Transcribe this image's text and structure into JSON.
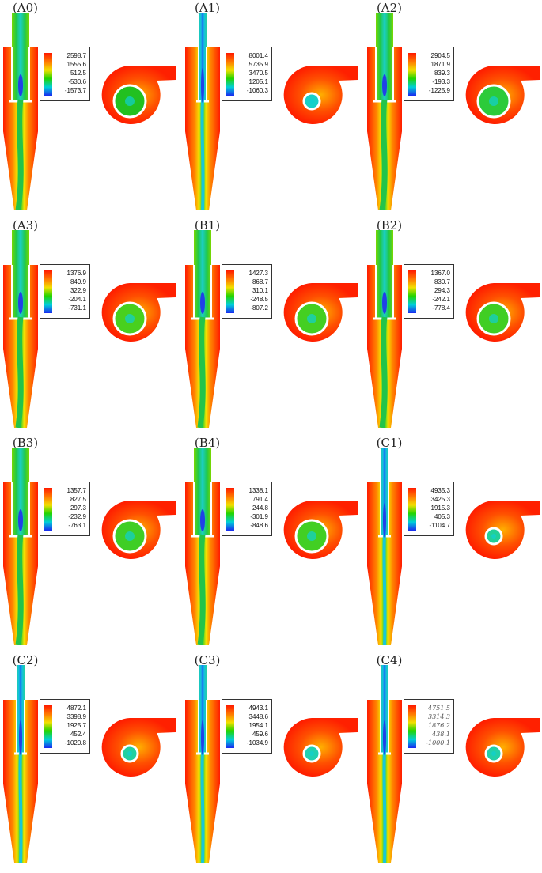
{
  "panels": [
    {
      "id": "a0",
      "label": "(A0)",
      "scale": [
        "2598.7",
        "1555.6",
        "512.5",
        "-530.6",
        "-1573.7"
      ],
      "core": "wide",
      "plan": "big",
      "inner": "#22c020"
    },
    {
      "id": "a1",
      "label": "(A1)",
      "scale": [
        "8001.4",
        "5735.9",
        "3470.5",
        "1205.1",
        "-1060.3"
      ],
      "core": "narrow",
      "plan": "small",
      "inner": "#19d0c8"
    },
    {
      "id": "a2",
      "label": "(A2)",
      "scale": [
        "2904.5",
        "1871.9",
        "839.3",
        "-193.3",
        "-1225.9"
      ],
      "core": "wide",
      "plan": "big",
      "inner": "#2ccb3a"
    },
    {
      "id": "a3",
      "label": "(A3)",
      "scale": [
        "1376.9",
        "849.9",
        "322.9",
        "-204.1",
        "-731.1"
      ],
      "core": "wide",
      "plan": "big",
      "inner": "#48d01e"
    },
    {
      "id": "b1",
      "label": "(B1)",
      "scale": [
        "1427.3",
        "868.7",
        "310.1",
        "-248.5",
        "-807.2"
      ],
      "core": "wide",
      "plan": "big",
      "inner": "#44cf22"
    },
    {
      "id": "b2",
      "label": "(B2)",
      "scale": [
        "1367.0",
        "830.7",
        "294.3",
        "-242.1",
        "-778.4"
      ],
      "core": "wide",
      "plan": "big",
      "inner": "#40ce24"
    },
    {
      "id": "b3",
      "label": "(B3)",
      "scale": [
        "1357.7",
        "827.5",
        "297.3",
        "-232.9",
        "-763.1"
      ],
      "core": "wide",
      "plan": "big",
      "inner": "#3fce25"
    },
    {
      "id": "b4",
      "label": "(B4)",
      "scale": [
        "1338.1",
        "791.4",
        "244.8",
        "-301.9",
        "-848.6"
      ],
      "core": "wide",
      "plan": "big",
      "inner": "#42cf23"
    },
    {
      "id": "c1",
      "label": "(C1)",
      "scale": [
        "4935.3",
        "3425.3",
        "1915.3",
        "405.3",
        "-1104.7"
      ],
      "core": "narrow",
      "plan": "small",
      "inner": "#22d098"
    },
    {
      "id": "c2",
      "label": "(C2)",
      "scale": [
        "4872.1",
        "3398.9",
        "1925.7",
        "452.4",
        "-1020.8"
      ],
      "core": "narrow",
      "plan": "small",
      "inner": "#22d0a0"
    },
    {
      "id": "c3",
      "label": "(C3)",
      "scale": [
        "4943.1",
        "3448.6",
        "1954.1",
        "459.6",
        "-1034.9"
      ],
      "core": "narrow",
      "plan": "small",
      "inner": "#20d0b0"
    },
    {
      "id": "c4",
      "label": "(C4)",
      "scale": [
        "4751.5",
        "3314.3",
        "1876.2",
        "438.1",
        "-1000.1"
      ],
      "core": "narrow",
      "plan": "small",
      "inner": "#22d0a8",
      "serif_scale": true
    }
  ]
}
